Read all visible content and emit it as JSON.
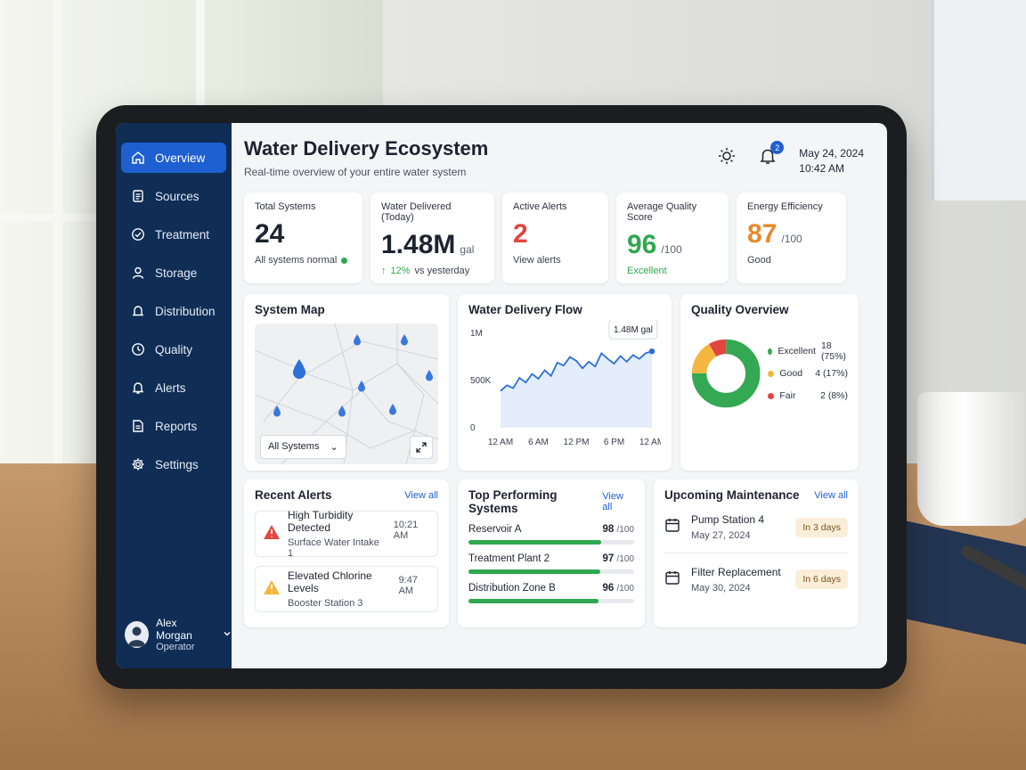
{
  "sidebar": {
    "items": [
      {
        "label": "Overview",
        "icon": "home-icon"
      },
      {
        "label": "Sources",
        "icon": "document-icon"
      },
      {
        "label": "Treatment",
        "icon": "check-circle-icon"
      },
      {
        "label": "Storage",
        "icon": "user-icon"
      },
      {
        "label": "Distribution",
        "icon": "bell-icon"
      },
      {
        "label": "Quality",
        "icon": "clock-icon"
      },
      {
        "label": "Alerts",
        "icon": "bell-icon"
      },
      {
        "label": "Reports",
        "icon": "report-icon"
      },
      {
        "label": "Settings",
        "icon": "gear-icon"
      }
    ],
    "active": "Overview",
    "user": {
      "name": "Alex Morgan",
      "role": "Operator"
    }
  },
  "header": {
    "title": "Water Delivery Ecosystem",
    "subtitle": "Real-time overview of your entire water system",
    "notification_count": "2",
    "date": "May 24, 2024",
    "time": "10:42 AM"
  },
  "kpis": {
    "total_systems": {
      "label": "Total Systems",
      "value": "24",
      "note": "All systems normal"
    },
    "water_delivered": {
      "label": "Water Delivered (Today)",
      "value": "1.48M",
      "unit": "gal",
      "note": "12%",
      "note_suffix": "vs yesterday"
    },
    "active_alerts": {
      "label": "Active Alerts",
      "value": "2",
      "note": "View alerts"
    },
    "quality_score": {
      "label": "Average Quality Score",
      "value": "96",
      "unit": "/100",
      "note": "Excellent"
    },
    "energy_efficiency": {
      "label": "Energy Efficiency",
      "value": "87",
      "unit": "/100",
      "note": "Good"
    }
  },
  "system_map": {
    "title": "System Map",
    "filter": "All Systems"
  },
  "flow": {
    "title": "Water Delivery Flow",
    "tooltip": "1.48M gal"
  },
  "quality": {
    "title": "Quality Overview",
    "legend": [
      {
        "label": "Excellent",
        "value": "18 (75%)",
        "color": "#34a853"
      },
      {
        "label": "Good",
        "value": "4 (17%)",
        "color": "#f4b63f"
      },
      {
        "label": "Fair",
        "value": "2 (8%)",
        "color": "#e2463f"
      }
    ]
  },
  "recent_alerts": {
    "title": "Recent Alerts",
    "view_all": "View all",
    "items": [
      {
        "title": "High Turbidity Detected",
        "source": "Surface Water Intake 1",
        "time": "10:21 AM",
        "severity": "critical",
        "color": "#e2463f"
      },
      {
        "title": "Elevated Chlorine Levels",
        "source": "Booster Station 3",
        "time": "9:47 AM",
        "severity": "warning",
        "color": "#f4b63f"
      }
    ]
  },
  "top_systems": {
    "title": "Top Performing Systems",
    "view_all": "View all",
    "items": [
      {
        "name": "Reservoir A",
        "score": "98",
        "max": "/100",
        "fraction": 0.98
      },
      {
        "name": "Treatment Plant 2",
        "score": "97",
        "max": "/100",
        "fraction": 0.97
      },
      {
        "name": "Distribution Zone B",
        "score": "96",
        "max": "/100",
        "fraction": 0.96
      }
    ]
  },
  "maintenance": {
    "title": "Upcoming Maintenance",
    "view_all": "View all",
    "items": [
      {
        "title": "Pump Station 4",
        "date": "May 27, 2024",
        "badge": "In 3 days"
      },
      {
        "title": "Filter Replacement",
        "date": "May 30, 2024",
        "badge": "In 6 days"
      }
    ]
  },
  "chart_data": [
    {
      "type": "line",
      "title": "Water Delivery Flow",
      "x_ticks": [
        "12 AM",
        "6 AM",
        "12 PM",
        "6 PM",
        "12 AM"
      ],
      "y_ticks": [
        "0",
        "500K",
        "1M"
      ],
      "ylim": [
        0,
        1000000
      ],
      "x": [
        0,
        1,
        2,
        3,
        4,
        5,
        6,
        7,
        8,
        9,
        10,
        11,
        12,
        13,
        14,
        15,
        16,
        17,
        18,
        19,
        20,
        21,
        22,
        23,
        24
      ],
      "values": [
        380000,
        440000,
        410000,
        520000,
        470000,
        560000,
        510000,
        600000,
        540000,
        680000,
        650000,
        740000,
        700000,
        620000,
        690000,
        640000,
        780000,
        720000,
        670000,
        750000,
        690000,
        760000,
        720000,
        780000,
        800000
      ],
      "annotation": "1.48M gal",
      "grid": false
    },
    {
      "type": "pie",
      "title": "Quality Overview",
      "labels": [
        "Excellent",
        "Good",
        "Fair"
      ],
      "values": [
        18,
        4,
        2
      ],
      "colors": [
        "#34a853",
        "#f4b63f",
        "#e2463f"
      ],
      "donut": true
    }
  ],
  "colors": {
    "sidebar_bg": "#0f2d55",
    "accent": "#1e5fd1",
    "success": "#2fa84f",
    "danger": "#e2463f",
    "warning": "#e8892a"
  }
}
